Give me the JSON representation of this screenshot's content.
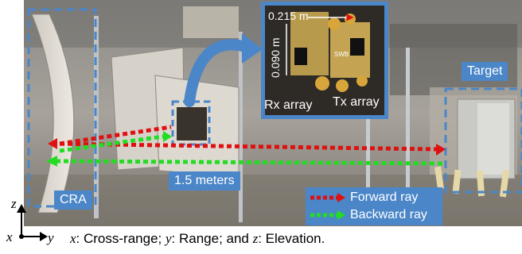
{
  "labels": {
    "dist_horizontal": "0.215 m",
    "dist_vertical": "0.090 m",
    "rx_array": "Rx array",
    "tx_array": "Tx array",
    "target": "Target",
    "cra": "CRA",
    "range": "1.5 meters",
    "chip": "SWB"
  },
  "legend": {
    "forward": "Forward ray",
    "backward": "Backward ray",
    "forward_color": "#e01010",
    "backward_color": "#22dd22"
  },
  "axes": {
    "z": "z",
    "x": "x",
    "y": "y"
  },
  "caption": {
    "x_var": "x",
    "x_text": ": Cross-range; ",
    "y_var": "y",
    "y_text": ": Range; and ",
    "z_var": "z",
    "z_text": ": Elevation."
  },
  "colors": {
    "box_blue": "#4a86c8",
    "dashed_blue": "#4a86c8"
  }
}
